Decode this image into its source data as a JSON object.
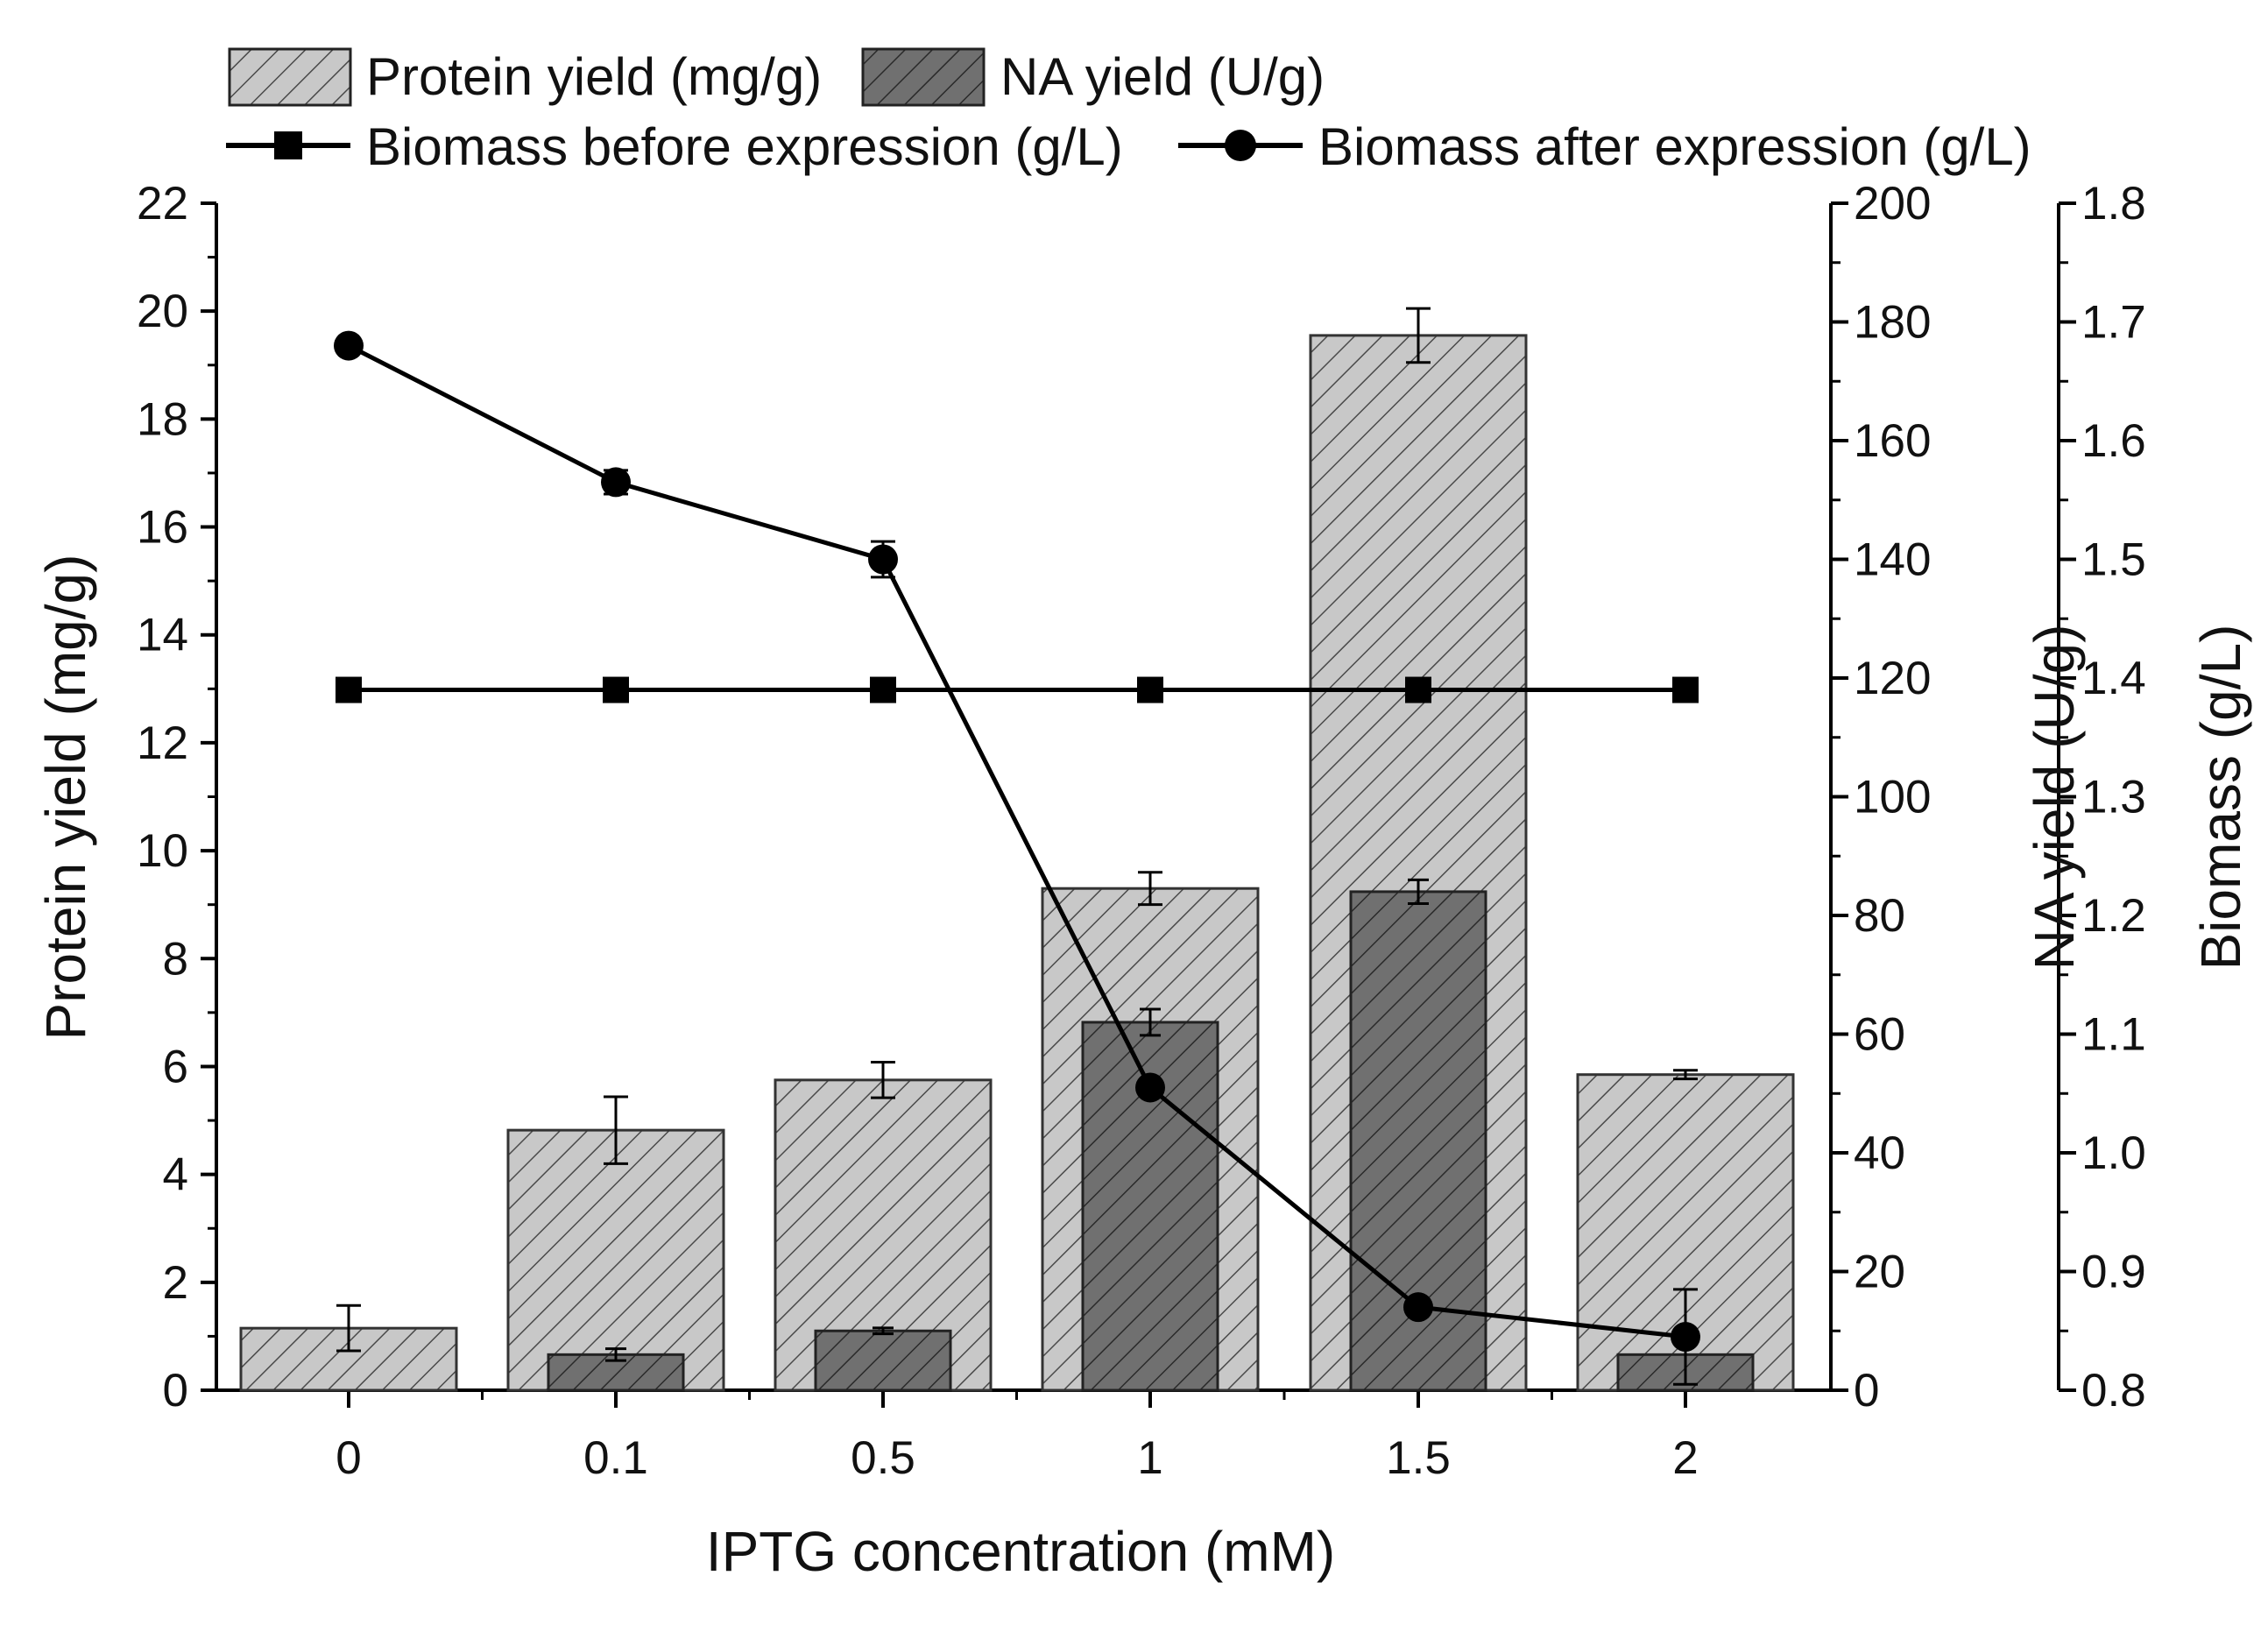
{
  "chart_data": {
    "type": "bar",
    "x_title": "IPTG concentration (mM)",
    "categories": [
      "0",
      "0.1",
      "0.5",
      "1",
      "1.5",
      "2"
    ],
    "axes": {
      "protein": {
        "title": "Protein yield (mg/g)",
        "range": [
          0,
          22
        ],
        "ticks": [
          "0",
          "2",
          "4",
          "6",
          "8",
          "10",
          "12",
          "14",
          "16",
          "18",
          "20",
          "22"
        ]
      },
      "na": {
        "title": "NA yield (U/g)",
        "range": [
          0,
          200
        ],
        "ticks": [
          "0",
          "20",
          "40",
          "60",
          "80",
          "100",
          "120",
          "140",
          "160",
          "180",
          "200"
        ]
      },
      "biomass": {
        "title": "Biomass (g/L)",
        "range": [
          0.8,
          1.8
        ],
        "ticks": [
          "0.8",
          "0.9",
          "1.0",
          "1.1",
          "1.2",
          "1.3",
          "1.4",
          "1.5",
          "1.6",
          "1.7",
          "1.8"
        ]
      }
    },
    "series": [
      {
        "name": "Protein yield (mg/g)",
        "kind": "bar",
        "axis": "protein",
        "color": "#c8c8c8",
        "values": [
          1.15,
          4.82,
          5.75,
          9.3,
          19.55,
          5.85
        ],
        "errors": [
          0.42,
          0.62,
          0.33,
          0.3,
          0.5,
          0.08
        ]
      },
      {
        "name": "NA yield (U/g)",
        "kind": "bar",
        "axis": "na",
        "color": "#707070",
        "values": [
          0,
          6,
          10,
          62,
          84,
          6
        ],
        "errors": [
          0,
          1,
          0.5,
          2.2,
          2,
          0
        ]
      },
      {
        "name": "Biomass before expression (g/L)",
        "kind": "line",
        "marker": "square",
        "axis": "biomass",
        "color": "#000000",
        "values": [
          1.39,
          1.39,
          1.39,
          1.39,
          1.39,
          1.39
        ]
      },
      {
        "name": "Biomass after expression (g/L)",
        "kind": "line",
        "marker": "circle",
        "axis": "biomass",
        "color": "#000000",
        "values": [
          1.68,
          1.565,
          1.5,
          1.055,
          0.87,
          0.845
        ],
        "errors": [
          0,
          0.01,
          0.015,
          0,
          0,
          0.04
        ]
      }
    ],
    "legend_position": "top",
    "grid": false
  }
}
